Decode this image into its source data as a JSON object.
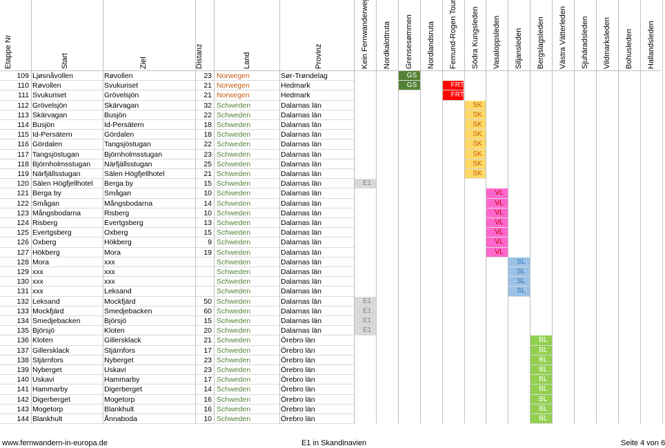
{
  "headers": {
    "etappe": "Etappe Nr",
    "start": "Start",
    "ziel": "Ziel",
    "distanz": "Distanz",
    "land": "Land",
    "provinz": "Provinz",
    "trails": [
      "Kein Fernwanderweg",
      "Nordkalottruta",
      "Grensesømmen",
      "Nordlandsruta",
      "Femund-Rogen Tour",
      "Södra Kungsleden",
      "Vasaloppsleden",
      "Siljansleden",
      "Bergslagsleden",
      "Västra Vätterleden",
      "Sjuhäradsleden",
      "Vildmarksleden",
      "Bohusleden",
      "Hallandsleden"
    ]
  },
  "trail_styles": {
    "GS": {
      "bg": "#548235",
      "fg": "#ffffff"
    },
    "FRT": {
      "bg": "#ff0000",
      "fg": "#ffffff"
    },
    "SK": {
      "bg": "#ffd966",
      "fg": "#c65911"
    },
    "E1": {
      "bg": "#d9d9d9",
      "fg": "#808080"
    },
    "VL": {
      "bg": "#ff66cc",
      "fg": "#c00000"
    },
    "SL": {
      "bg": "#9bc2e6",
      "fg": "#2e75b6"
    },
    "BL": {
      "bg": "#92d050",
      "fg": "#ffffff"
    }
  },
  "rows": [
    {
      "nr": "109",
      "start": "Ljøsnåvollen",
      "ziel": "Røvollen",
      "dist": "23",
      "land": "Norwegen",
      "provinz": "Sør-Trøndelag",
      "trail": "GS",
      "col": 2
    },
    {
      "nr": "110",
      "start": "Røvollen",
      "ziel": "Svukuriset",
      "dist": "21",
      "land": "Norwegen",
      "provinz": "Hedmark",
      "trail": "GS",
      "col": 2,
      "extra": "FRT",
      "extra_col": 4
    },
    {
      "nr": "111",
      "start": "Svukuriset",
      "ziel": "Grövelsjön",
      "dist": "21",
      "land": "Norwegen",
      "provinz": "Hedmark",
      "trail": "FRT",
      "col": 4
    },
    {
      "nr": "112",
      "start": "Grövelsjön",
      "ziel": "Skärvagan",
      "dist": "32",
      "land": "Schweden",
      "provinz": "Dalarnas län",
      "trail": "SK",
      "col": 5
    },
    {
      "nr": "113",
      "start": "Skärvagan",
      "ziel": "Busjön",
      "dist": "22",
      "land": "Schweden",
      "provinz": "Dalarnas län",
      "trail": "SK",
      "col": 5
    },
    {
      "nr": "114",
      "start": "Busjön",
      "ziel": "Id-Persätern",
      "dist": "18",
      "land": "Schweden",
      "provinz": "Dalarnas län",
      "trail": "SK",
      "col": 5
    },
    {
      "nr": "115",
      "start": "Id-Persätern",
      "ziel": "Gördalen",
      "dist": "18",
      "land": "Schweden",
      "provinz": "Dalarnas län",
      "trail": "SK",
      "col": 5
    },
    {
      "nr": "116",
      "start": "Gördalen",
      "ziel": "Tangsjöstugan",
      "dist": "22",
      "land": "Schweden",
      "provinz": "Dalarnas län",
      "trail": "SK",
      "col": 5
    },
    {
      "nr": "117",
      "start": "Tangsjöstugan",
      "ziel": "Björnholmsstugan",
      "dist": "23",
      "land": "Schweden",
      "provinz": "Dalarnas län",
      "trail": "SK",
      "col": 5
    },
    {
      "nr": "118",
      "start": "Björnholmsstugan",
      "ziel": "Närfjällsstugan",
      "dist": "25",
      "land": "Schweden",
      "provinz": "Dalarnas län",
      "trail": "SK",
      "col": 5
    },
    {
      "nr": "119",
      "start": "Närfjällsstugan",
      "ziel": "Sälen Högfjellhotel",
      "dist": "21",
      "land": "Schweden",
      "provinz": "Dalarnas län",
      "trail": "SK",
      "col": 5
    },
    {
      "nr": "120",
      "start": "Sälen Högfjellhotel",
      "ziel": "Berga by",
      "dist": "15",
      "land": "Schweden",
      "provinz": "Dalarnas län",
      "trail": "E1",
      "col": 0
    },
    {
      "nr": "121",
      "start": "Berga by",
      "ziel": "Smågan",
      "dist": "10",
      "land": "Schweden",
      "provinz": "Dalarnas län",
      "trail": "VL",
      "col": 6
    },
    {
      "nr": "122",
      "start": "Smågan",
      "ziel": "Mångsbodarna",
      "dist": "14",
      "land": "Schweden",
      "provinz": "Dalarnas län",
      "trail": "VL",
      "col": 6
    },
    {
      "nr": "123",
      "start": "Mångsbodarna",
      "ziel": "Risberg",
      "dist": "10",
      "land": "Schweden",
      "provinz": "Dalarnas län",
      "trail": "VL",
      "col": 6
    },
    {
      "nr": "124",
      "start": "Risberg",
      "ziel": "Evertgsberg",
      "dist": "13",
      "land": "Schweden",
      "provinz": "Dalarnas län",
      "trail": "VL",
      "col": 6
    },
    {
      "nr": "125",
      "start": "Evertgsberg",
      "ziel": "Oxberg",
      "dist": "15",
      "land": "Schweden",
      "provinz": "Dalarnas län",
      "trail": "VL",
      "col": 6
    },
    {
      "nr": "126",
      "start": "Oxberg",
      "ziel": "Hökberg",
      "dist": "9",
      "land": "Schweden",
      "provinz": "Dalarnas län",
      "trail": "VL",
      "col": 6
    },
    {
      "nr": "127",
      "start": "Hökberg",
      "ziel": "Mora",
      "dist": "19",
      "land": "Schweden",
      "provinz": "Dalarnas län",
      "trail": "VL",
      "col": 6
    },
    {
      "nr": "128",
      "start": "Mora",
      "ziel": "xxx",
      "dist": "",
      "land": "Schweden",
      "provinz": "Dalarnas län",
      "trail": "SL",
      "col": 7
    },
    {
      "nr": "129",
      "start": "xxx",
      "ziel": "xxx",
      "dist": "",
      "land": "Schweden",
      "provinz": "Dalarnas län",
      "trail": "SL",
      "col": 7
    },
    {
      "nr": "130",
      "start": "xxx",
      "ziel": "xxx",
      "dist": "",
      "land": "Schweden",
      "provinz": "Dalarnas län",
      "trail": "SL",
      "col": 7
    },
    {
      "nr": "131",
      "start": "xxx",
      "ziel": "Leksand",
      "dist": "",
      "land": "Schweden",
      "provinz": "Dalarnas län",
      "trail": "SL",
      "col": 7
    },
    {
      "nr": "132",
      "start": "Leksand",
      "ziel": "Mockfjärd",
      "dist": "50",
      "land": "Schweden",
      "provinz": "Dalarnas län",
      "trail": "E1",
      "col": 0
    },
    {
      "nr": "133",
      "start": "Mockfjärd",
      "ziel": "Smedjebacken",
      "dist": "60",
      "land": "Schweden",
      "provinz": "Dalarnas län",
      "trail": "E1",
      "col": 0
    },
    {
      "nr": "134",
      "start": "Smedjebacken",
      "ziel": "Björsjö",
      "dist": "15",
      "land": "Schweden",
      "provinz": "Dalarnas län",
      "trail": "E1",
      "col": 0
    },
    {
      "nr": "135",
      "start": "Björsjö",
      "ziel": "Kloten",
      "dist": "20",
      "land": "Schweden",
      "provinz": "Dalarnas län",
      "trail": "E1",
      "col": 0
    },
    {
      "nr": "136",
      "start": "Kloten",
      "ziel": "Gillersklack",
      "dist": "21",
      "land": "Schweden",
      "provinz": "Örebro län",
      "trail": "BL",
      "col": 8
    },
    {
      "nr": "137",
      "start": "Gillersklack",
      "ziel": "Stjärnfors",
      "dist": "17",
      "land": "Schweden",
      "provinz": "Örebro län",
      "trail": "BL",
      "col": 8
    },
    {
      "nr": "138",
      "start": "Stjärnfors",
      "ziel": "Nyberget",
      "dist": "23",
      "land": "Schweden",
      "provinz": "Örebro län",
      "trail": "BL",
      "col": 8
    },
    {
      "nr": "139",
      "start": "Nyberget",
      "ziel": "Uskavi",
      "dist": "23",
      "land": "Schweden",
      "provinz": "Örebro län",
      "trail": "BL",
      "col": 8
    },
    {
      "nr": "140",
      "start": "Uskavi",
      "ziel": "Hammarby",
      "dist": "17",
      "land": "Schweden",
      "provinz": "Örebro län",
      "trail": "BL",
      "col": 8
    },
    {
      "nr": "141",
      "start": "Hammarby",
      "ziel": "Digerberget",
      "dist": "14",
      "land": "Schweden",
      "provinz": "Örebro län",
      "trail": "BL",
      "col": 8
    },
    {
      "nr": "142",
      "start": "Digerberget",
      "ziel": "Mogetorp",
      "dist": "16",
      "land": "Schweden",
      "provinz": "Örebro län",
      "trail": "BL",
      "col": 8
    },
    {
      "nr": "143",
      "start": "Mogetorp",
      "ziel": "Blankhult",
      "dist": "16",
      "land": "Schweden",
      "provinz": "Örebro län",
      "trail": "BL",
      "col": 8
    },
    {
      "nr": "144",
      "start": "Blankhult",
      "ziel": "Ånnaboda",
      "dist": "10",
      "land": "Schweden",
      "provinz": "Örebro län",
      "trail": "BL",
      "col": 8
    }
  ],
  "footer": {
    "left": "www.fernwandern-in-europa.de",
    "center": "E1 in Skandinavien",
    "right": "Seite 4 von 6"
  }
}
